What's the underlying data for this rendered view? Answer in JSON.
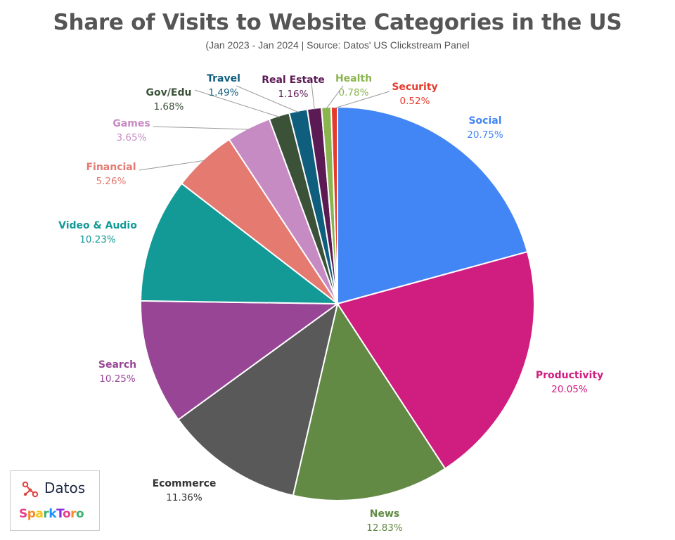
{
  "header": {
    "title": "Share of Visits to Website Categories in the US",
    "subtitle": "(Jan 2023 - Jan 2024 | Source: Datos' US Clickstream Panel"
  },
  "chart_data": {
    "type": "pie",
    "title": "Share of Visits to Website Categories in the US",
    "subtitle": "(Jan 2023 - Jan 2024 | Source: Datos' US Clickstream Panel",
    "start_angle": "12 o'clock",
    "direction": "clockwise",
    "slices": [
      {
        "label": "Social",
        "value": 20.75,
        "display": "20.75%",
        "color": "#4285f4"
      },
      {
        "label": "Productivity",
        "value": 20.05,
        "display": "20.05%",
        "color": "#d01d80"
      },
      {
        "label": "News",
        "value": 12.83,
        "display": "12.83%",
        "color": "#628a45"
      },
      {
        "label": "Ecommerce",
        "value": 11.36,
        "display": "11.36%",
        "color": "#595959"
      },
      {
        "label": "Search",
        "value": 10.25,
        "display": "10.25%",
        "color": "#984596"
      },
      {
        "label": "Video & Audio",
        "value": 10.23,
        "display": "10.23%",
        "color": "#139996"
      },
      {
        "label": "Financial",
        "value": 5.26,
        "display": "5.26%",
        "color": "#e57a71"
      },
      {
        "label": "Games",
        "value": 3.65,
        "display": "3.65%",
        "color": "#c78bc4"
      },
      {
        "label": "Gov/Edu",
        "value": 1.68,
        "display": "1.68%",
        "color": "#3b5239"
      },
      {
        "label": "Travel",
        "value": 1.49,
        "display": "1.49%",
        "color": "#0f5e7d"
      },
      {
        "label": "Real Estate",
        "value": 1.16,
        "display": "1.16%",
        "color": "#5c1a54"
      },
      {
        "label": "Health",
        "value": 0.78,
        "display": "0.78%",
        "color": "#8ab54e"
      },
      {
        "label": "Security",
        "value": 0.52,
        "display": "0.52%",
        "color": "#e53b2c"
      }
    ]
  },
  "logos": {
    "datos": "Datos",
    "sparktoro": "SparkToro",
    "datos_icon": "datos-network-icon",
    "sparktoro_colors": [
      "#e83e8c",
      "#f28c28",
      "#f5c518",
      "#3cb371",
      "#1e90ff",
      "#8a2be2",
      "#e83e8c",
      "#f28c28",
      "#3cb371"
    ]
  }
}
